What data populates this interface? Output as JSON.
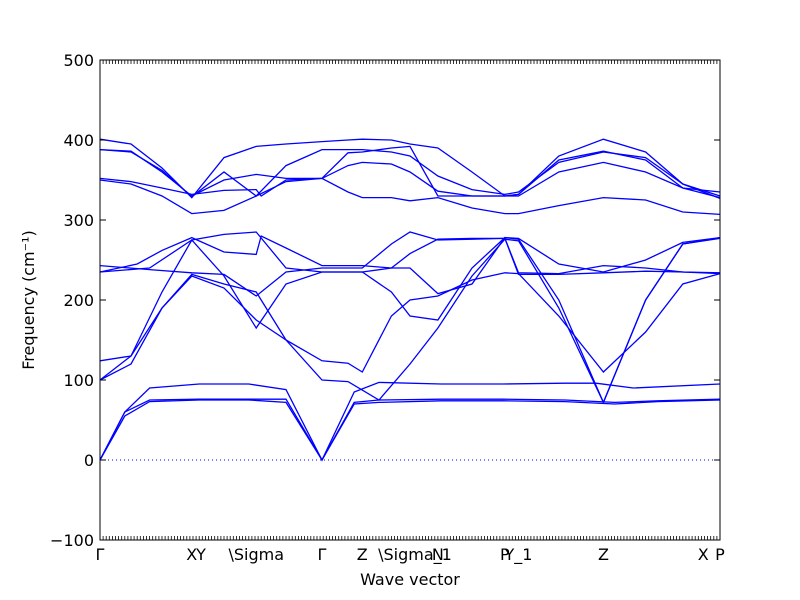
{
  "chart_data": {
    "type": "line",
    "xlabel": "Wave vector",
    "ylabel": "Frequency (cm⁻¹)",
    "ylim": [
      -100,
      500
    ],
    "y_ticks": [
      -100,
      0,
      100,
      200,
      300,
      400,
      500
    ],
    "zero_line": {
      "y": 0,
      "style": "dotted"
    },
    "grid": false,
    "high_symmetry_points": [
      {
        "label": "Γ",
        "x": 0.0
      },
      {
        "label": "X",
        "x": 0.148
      },
      {
        "label": "Y",
        "x": 0.163
      },
      {
        "label": "\\Sigma",
        "x": 0.252
      },
      {
        "label": "Γ",
        "x": 0.358
      },
      {
        "label": "Z",
        "x": 0.423
      },
      {
        "label": "\\Sigma_1",
        "x": 0.508
      },
      {
        "label": "N",
        "x": 0.545
      },
      {
        "label": "P",
        "x": 0.653
      },
      {
        "label": "Y_1",
        "x": 0.675
      },
      {
        "label": "Z",
        "x": 0.812
      },
      {
        "label": "X",
        "x": 0.973
      },
      {
        "label": "P",
        "x": 1.0
      }
    ],
    "series": [
      {
        "values": [
          [
            0.0,
            0
          ],
          [
            0.04,
            55
          ],
          [
            0.08,
            73
          ],
          [
            0.16,
            75
          ],
          [
            0.24,
            75
          ],
          [
            0.3,
            72
          ],
          [
            0.358,
            0
          ],
          [
            0.41,
            70
          ],
          [
            0.45,
            72
          ],
          [
            0.55,
            74
          ],
          [
            0.65,
            74
          ],
          [
            0.75,
            73
          ],
          [
            0.83,
            70
          ],
          [
            0.9,
            73
          ],
          [
            1.0,
            75
          ]
        ]
      },
      {
        "values": [
          [
            0.0,
            0
          ],
          [
            0.04,
            60
          ],
          [
            0.08,
            75
          ],
          [
            0.16,
            76
          ],
          [
            0.24,
            76
          ],
          [
            0.3,
            76
          ],
          [
            0.358,
            0
          ],
          [
            0.41,
            72
          ],
          [
            0.45,
            75
          ],
          [
            0.55,
            76
          ],
          [
            0.65,
            76
          ],
          [
            0.75,
            75
          ],
          [
            0.83,
            72
          ],
          [
            0.9,
            74
          ],
          [
            1.0,
            76
          ]
        ]
      },
      {
        "values": [
          [
            0.0,
            0
          ],
          [
            0.04,
            60
          ],
          [
            0.08,
            90
          ],
          [
            0.16,
            95
          ],
          [
            0.24,
            95
          ],
          [
            0.3,
            88
          ],
          [
            0.358,
            0
          ],
          [
            0.41,
            85
          ],
          [
            0.45,
            97
          ],
          [
            0.55,
            95
          ],
          [
            0.65,
            95
          ],
          [
            0.75,
            96
          ],
          [
            0.8,
            96
          ],
          [
            0.86,
            90
          ],
          [
            1.0,
            95
          ]
        ]
      },
      {
        "values": [
          [
            0.0,
            100
          ],
          [
            0.05,
            130
          ],
          [
            0.1,
            210
          ],
          [
            0.148,
            275
          ],
          [
            0.2,
            230
          ],
          [
            0.252,
            165
          ],
          [
            0.3,
            220
          ],
          [
            0.358,
            235
          ],
          [
            0.423,
            235
          ],
          [
            0.47,
            210
          ],
          [
            0.5,
            180
          ],
          [
            0.545,
            175
          ],
          [
            0.6,
            240
          ],
          [
            0.653,
            278
          ],
          [
            0.675,
            276
          ],
          [
            0.74,
            200
          ],
          [
            0.812,
            72
          ],
          [
            0.88,
            200
          ],
          [
            0.94,
            270
          ],
          [
            1.0,
            278
          ]
        ]
      },
      {
        "values": [
          [
            0.0,
            100
          ],
          [
            0.05,
            120
          ],
          [
            0.1,
            190
          ],
          [
            0.148,
            230
          ],
          [
            0.2,
            215
          ],
          [
            0.252,
            175
          ],
          [
            0.3,
            150
          ],
          [
            0.358,
            100
          ],
          [
            0.4,
            98
          ],
          [
            0.45,
            75
          ],
          [
            0.5,
            120
          ],
          [
            0.545,
            165
          ],
          [
            0.6,
            230
          ],
          [
            0.653,
            276
          ],
          [
            0.675,
            274
          ],
          [
            0.74,
            190
          ],
          [
            0.812,
            72
          ],
          [
            0.88,
            200
          ],
          [
            0.94,
            270
          ],
          [
            1.0,
            277
          ]
        ]
      },
      {
        "values": [
          [
            0.0,
            124
          ],
          [
            0.05,
            130
          ],
          [
            0.1,
            190
          ],
          [
            0.148,
            232
          ],
          [
            0.2,
            220
          ],
          [
            0.252,
            210
          ],
          [
            0.3,
            150
          ],
          [
            0.358,
            124
          ],
          [
            0.4,
            121
          ],
          [
            0.423,
            110
          ],
          [
            0.47,
            180
          ],
          [
            0.5,
            200
          ],
          [
            0.545,
            205
          ],
          [
            0.6,
            225
          ],
          [
            0.653,
            234
          ],
          [
            0.675,
            233
          ],
          [
            0.74,
            180
          ],
          [
            0.812,
            110
          ],
          [
            0.88,
            160
          ],
          [
            0.94,
            220
          ],
          [
            1.0,
            233
          ]
        ]
      },
      {
        "values": [
          [
            0.0,
            235
          ],
          [
            0.06,
            245
          ],
          [
            0.1,
            262
          ],
          [
            0.148,
            278
          ],
          [
            0.2,
            260
          ],
          [
            0.252,
            257
          ],
          [
            0.26,
            280
          ],
          [
            0.3,
            265
          ],
          [
            0.358,
            243
          ],
          [
            0.423,
            243
          ],
          [
            0.47,
            240
          ],
          [
            0.5,
            240
          ],
          [
            0.545,
            208
          ],
          [
            0.6,
            220
          ],
          [
            0.653,
            278
          ],
          [
            0.675,
            277
          ],
          [
            0.74,
            245
          ],
          [
            0.812,
            235
          ],
          [
            0.88,
            250
          ],
          [
            0.94,
            272
          ],
          [
            1.0,
            278
          ]
        ]
      },
      {
        "values": [
          [
            0.0,
            243
          ],
          [
            0.08,
            238
          ],
          [
            0.148,
            234
          ],
          [
            0.2,
            232
          ],
          [
            0.252,
            205
          ],
          [
            0.3,
            235
          ],
          [
            0.358,
            240
          ],
          [
            0.423,
            240
          ],
          [
            0.47,
            270
          ],
          [
            0.5,
            285
          ],
          [
            0.545,
            275
          ],
          [
            0.6,
            276
          ],
          [
            0.653,
            277
          ],
          [
            0.675,
            234
          ],
          [
            0.74,
            233
          ],
          [
            0.812,
            243
          ],
          [
            0.88,
            240
          ],
          [
            0.94,
            235
          ],
          [
            1.0,
            234
          ]
        ]
      },
      {
        "values": [
          [
            0.0,
            235
          ],
          [
            0.08,
            240
          ],
          [
            0.148,
            275
          ],
          [
            0.2,
            282
          ],
          [
            0.252,
            285
          ],
          [
            0.3,
            240
          ],
          [
            0.358,
            235
          ],
          [
            0.423,
            235
          ],
          [
            0.47,
            240
          ],
          [
            0.5,
            258
          ],
          [
            0.545,
            276
          ],
          [
            0.6,
            277
          ],
          [
            0.653,
            277
          ],
          [
            0.675,
            232
          ],
          [
            0.74,
            232
          ],
          [
            0.812,
            234
          ],
          [
            0.88,
            236
          ],
          [
            0.94,
            235
          ],
          [
            1.0,
            233
          ]
        ]
      },
      {
        "values": [
          [
            0.0,
            350
          ],
          [
            0.05,
            345
          ],
          [
            0.1,
            330
          ],
          [
            0.148,
            308
          ],
          [
            0.2,
            312
          ],
          [
            0.252,
            330
          ],
          [
            0.3,
            348
          ],
          [
            0.358,
            352
          ],
          [
            0.4,
            335
          ],
          [
            0.423,
            328
          ],
          [
            0.47,
            328
          ],
          [
            0.5,
            324
          ],
          [
            0.545,
            328
          ],
          [
            0.6,
            315
          ],
          [
            0.653,
            308
          ],
          [
            0.675,
            308
          ],
          [
            0.74,
            318
          ],
          [
            0.812,
            328
          ],
          [
            0.88,
            325
          ],
          [
            0.94,
            310
          ],
          [
            1.0,
            307
          ]
        ]
      },
      {
        "values": [
          [
            0.0,
            352
          ],
          [
            0.05,
            348
          ],
          [
            0.1,
            340
          ],
          [
            0.148,
            332
          ],
          [
            0.2,
            337
          ],
          [
            0.252,
            338
          ],
          [
            0.26,
            330
          ],
          [
            0.3,
            350
          ],
          [
            0.358,
            352
          ],
          [
            0.4,
            368
          ],
          [
            0.423,
            372
          ],
          [
            0.47,
            370
          ],
          [
            0.5,
            360
          ],
          [
            0.545,
            336
          ],
          [
            0.6,
            330
          ],
          [
            0.653,
            330
          ],
          [
            0.675,
            330
          ],
          [
            0.74,
            360
          ],
          [
            0.812,
            372
          ],
          [
            0.88,
            360
          ],
          [
            0.94,
            340
          ],
          [
            1.0,
            335
          ]
        ]
      },
      {
        "values": [
          [
            0.0,
            388
          ],
          [
            0.05,
            386
          ],
          [
            0.1,
            360
          ],
          [
            0.148,
            330
          ],
          [
            0.2,
            350
          ],
          [
            0.252,
            357
          ],
          [
            0.3,
            352
          ],
          [
            0.358,
            352
          ],
          [
            0.4,
            384
          ],
          [
            0.423,
            385
          ],
          [
            0.47,
            390
          ],
          [
            0.5,
            392
          ],
          [
            0.545,
            330
          ],
          [
            0.6,
            330
          ],
          [
            0.653,
            330
          ],
          [
            0.675,
            332
          ],
          [
            0.74,
            375
          ],
          [
            0.812,
            386
          ],
          [
            0.88,
            375
          ],
          [
            0.94,
            340
          ],
          [
            1.0,
            328
          ]
        ]
      },
      {
        "values": [
          [
            0.0,
            401
          ],
          [
            0.05,
            395
          ],
          [
            0.1,
            365
          ],
          [
            0.148,
            328
          ],
          [
            0.2,
            378
          ],
          [
            0.252,
            392
          ],
          [
            0.3,
            395
          ],
          [
            0.358,
            398
          ],
          [
            0.4,
            400
          ],
          [
            0.423,
            401
          ],
          [
            0.47,
            400
          ],
          [
            0.5,
            395
          ],
          [
            0.545,
            390
          ],
          [
            0.6,
            360
          ],
          [
            0.653,
            330
          ],
          [
            0.675,
            332
          ],
          [
            0.74,
            380
          ],
          [
            0.812,
            401
          ],
          [
            0.88,
            385
          ],
          [
            0.94,
            345
          ],
          [
            1.0,
            327
          ]
        ]
      },
      {
        "values": [
          [
            0.0,
            388
          ],
          [
            0.05,
            385
          ],
          [
            0.1,
            362
          ],
          [
            0.148,
            329
          ],
          [
            0.2,
            360
          ],
          [
            0.252,
            330
          ],
          [
            0.3,
            368
          ],
          [
            0.358,
            388
          ],
          [
            0.4,
            388
          ],
          [
            0.423,
            388
          ],
          [
            0.47,
            385
          ],
          [
            0.5,
            380
          ],
          [
            0.545,
            355
          ],
          [
            0.6,
            338
          ],
          [
            0.653,
            332
          ],
          [
            0.675,
            335
          ],
          [
            0.74,
            372
          ],
          [
            0.812,
            385
          ],
          [
            0.88,
            378
          ],
          [
            0.94,
            345
          ],
          [
            1.0,
            330
          ]
        ]
      }
    ]
  }
}
